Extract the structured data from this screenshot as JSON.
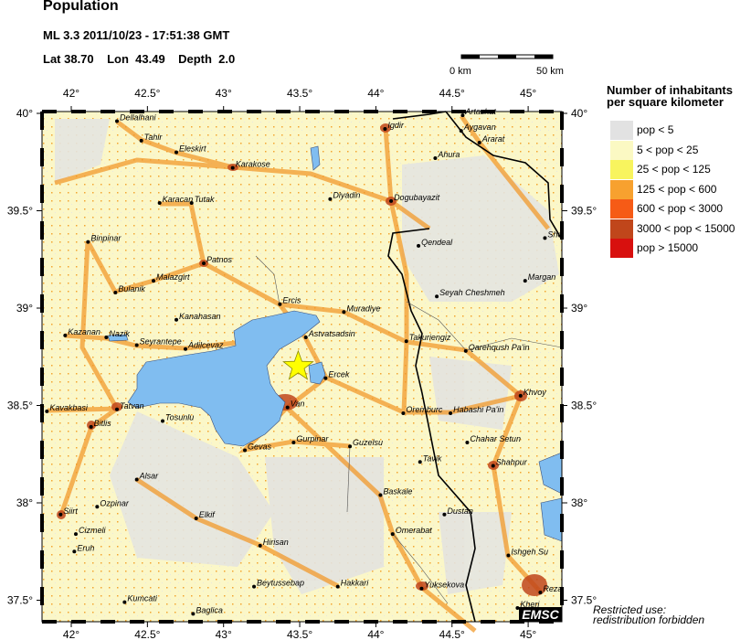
{
  "header": {
    "title": "Population",
    "event_line": "ML 3.3  2011/10/23 - 17:51:38 GMT",
    "location_line": "Lat 38.70    Lon  43.49    Depth  2.0"
  },
  "scale_bar": {
    "start_label": "0 km",
    "end_label": "50 km"
  },
  "legend": {
    "title_line1": "Number of inhabitants",
    "title_line2": "per square kilometer",
    "items": [
      {
        "label": "pop < 5",
        "color": "#e2e2e2"
      },
      {
        "label": "5 < pop < 25",
        "color": "#fbf9c3"
      },
      {
        "label": "25 < pop < 125",
        "color": "#f8f45e"
      },
      {
        "label": "125 < pop < 600",
        "color": "#f7a12f"
      },
      {
        "label": "600 < pop < 3000",
        "color": "#f65b16"
      },
      {
        "label": "3000 < pop < 15000",
        "color": "#c0461b"
      },
      {
        "label": "pop > 15000",
        "color": "#d8100e"
      }
    ]
  },
  "map": {
    "lon_range": [
      41.81,
      45.22
    ],
    "lat_range": [
      37.39,
      40.0
    ],
    "lon_ticks": [
      "42°",
      "42.5°",
      "43°",
      "43.5°",
      "44°",
      "44.5°",
      "45°"
    ],
    "lon_tick_values": [
      42,
      42.5,
      43,
      43.5,
      44,
      44.5,
      45
    ],
    "lat_ticks": [
      "40°",
      "39.5°",
      "39°",
      "38.5°",
      "38°",
      "37.5°"
    ],
    "lat_tick_values": [
      40,
      39.5,
      39,
      38.5,
      38,
      37.5
    ],
    "epicenter": {
      "lon": 43.49,
      "lat": 38.7,
      "color": "#ffff00",
      "icon": "star-icon"
    },
    "water_color": "#80bdf0",
    "cities": [
      {
        "name": "Dellalhani",
        "lon": 42.3,
        "lat": 39.96
      },
      {
        "name": "Tahir",
        "lon": 42.46,
        "lat": 39.86
      },
      {
        "name": "Eleskirt",
        "lon": 42.69,
        "lat": 39.8
      },
      {
        "name": "Karakose",
        "lon": 43.06,
        "lat": 39.72
      },
      {
        "name": "Igdir",
        "lon": 44.06,
        "lat": 39.92
      },
      {
        "name": "Artashat",
        "lon": 44.57,
        "lat": 39.99
      },
      {
        "name": "Aygavan",
        "lon": 44.56,
        "lat": 39.91
      },
      {
        "name": "Ararat",
        "lon": 44.68,
        "lat": 39.85
      },
      {
        "name": "Ahura",
        "lon": 44.39,
        "lat": 39.77
      },
      {
        "name": "Diyadin",
        "lon": 43.7,
        "lat": 39.56
      },
      {
        "name": "Dogubayazit",
        "lon": 44.1,
        "lat": 39.55
      },
      {
        "name": "Karacan",
        "lon": 42.58,
        "lat": 39.54
      },
      {
        "name": "Tutak",
        "lon": 42.79,
        "lat": 39.54
      },
      {
        "name": "Binpinar",
        "lon": 42.11,
        "lat": 39.34
      },
      {
        "name": "Qendeal",
        "lon": 44.28,
        "lat": 39.32
      },
      {
        "name": "Patnos",
        "lon": 42.87,
        "lat": 39.23
      },
      {
        "name": "Sho",
        "lon": 45.11,
        "lat": 39.36
      },
      {
        "name": "Bulanik",
        "lon": 42.29,
        "lat": 39.08
      },
      {
        "name": "Malazgirt",
        "lon": 42.54,
        "lat": 39.14
      },
      {
        "name": "Margan",
        "lon": 44.98,
        "lat": 39.14
      },
      {
        "name": "Ercis",
        "lon": 43.37,
        "lat": 39.02
      },
      {
        "name": "Seyah Cheshmeh",
        "lon": 44.4,
        "lat": 39.06
      },
      {
        "name": "Muradiye",
        "lon": 43.79,
        "lat": 38.98
      },
      {
        "name": "Kanahasan",
        "lon": 42.69,
        "lat": 38.94
      },
      {
        "name": "Kazanan",
        "lon": 41.96,
        "lat": 38.86
      },
      {
        "name": "Nazik",
        "lon": 42.23,
        "lat": 38.85
      },
      {
        "name": "Seyrantepe",
        "lon": 42.43,
        "lat": 38.81
      },
      {
        "name": "Adilcevaz",
        "lon": 42.75,
        "lat": 38.79
      },
      {
        "name": "Astvatsadsin",
        "lon": 43.54,
        "lat": 38.85
      },
      {
        "name": "Takuriengiz",
        "lon": 44.2,
        "lat": 38.83
      },
      {
        "name": "Qarehqush Pa'in",
        "lon": 44.59,
        "lat": 38.78
      },
      {
        "name": "Ercek",
        "lon": 43.67,
        "lat": 38.64
      },
      {
        "name": "Van",
        "lon": 43.42,
        "lat": 38.49
      },
      {
        "name": "Tatvan",
        "lon": 42.3,
        "lat": 38.48
      },
      {
        "name": "Kavakbasi",
        "lon": 41.84,
        "lat": 38.47
      },
      {
        "name": "Bitlis",
        "lon": 42.13,
        "lat": 38.39
      },
      {
        "name": "Tosunlu",
        "lon": 42.6,
        "lat": 38.42
      },
      {
        "name": "Oremburc",
        "lon": 44.18,
        "lat": 38.46
      },
      {
        "name": "Habashi Pa'in",
        "lon": 44.49,
        "lat": 38.46
      },
      {
        "name": "Khvoy",
        "lon": 44.95,
        "lat": 38.55
      },
      {
        "name": "Gevas",
        "lon": 43.14,
        "lat": 38.27
      },
      {
        "name": "Gurpinar",
        "lon": 43.46,
        "lat": 38.31
      },
      {
        "name": "Guzelsu",
        "lon": 43.83,
        "lat": 38.29
      },
      {
        "name": "Chahar Setun",
        "lon": 44.6,
        "lat": 38.31
      },
      {
        "name": "Tavik",
        "lon": 44.29,
        "lat": 38.21
      },
      {
        "name": "Shahpur",
        "lon": 44.77,
        "lat": 38.19
      },
      {
        "name": "Alsar",
        "lon": 42.43,
        "lat": 38.12
      },
      {
        "name": "Baskale",
        "lon": 44.03,
        "lat": 38.04
      },
      {
        "name": "Siirt",
        "lon": 41.93,
        "lat": 37.94
      },
      {
        "name": "Ozpinar",
        "lon": 42.17,
        "lat": 37.98
      },
      {
        "name": "Elkif",
        "lon": 42.82,
        "lat": 37.92
      },
      {
        "name": "Dustan",
        "lon": 44.45,
        "lat": 37.94
      },
      {
        "name": "Cizmeli",
        "lon": 42.03,
        "lat": 37.84
      },
      {
        "name": "Omerabat",
        "lon": 44.11,
        "lat": 37.84
      },
      {
        "name": "Eruh",
        "lon": 42.02,
        "lat": 37.75
      },
      {
        "name": "Hirisan",
        "lon": 43.24,
        "lat": 37.78
      },
      {
        "name": "Ishgeh Su",
        "lon": 44.87,
        "lat": 37.73
      },
      {
        "name": "Beytussebap",
        "lon": 43.2,
        "lat": 37.57
      },
      {
        "name": "Hakkari",
        "lon": 43.75,
        "lat": 37.57
      },
      {
        "name": "Yuksekova",
        "lon": 44.3,
        "lat": 37.56
      },
      {
        "name": "Reza",
        "lon": 45.08,
        "lat": 37.54
      },
      {
        "name": "Kumcati",
        "lon": 42.35,
        "lat": 37.49
      },
      {
        "name": "Baglica",
        "lon": 42.8,
        "lat": 37.43
      },
      {
        "name": "Kheri",
        "lon": 44.93,
        "lat": 37.46
      }
    ]
  },
  "footer": {
    "restricted_line1": "Restricted use:",
    "restricted_line2": "redistribution forbidden",
    "logo": "EMSC"
  }
}
